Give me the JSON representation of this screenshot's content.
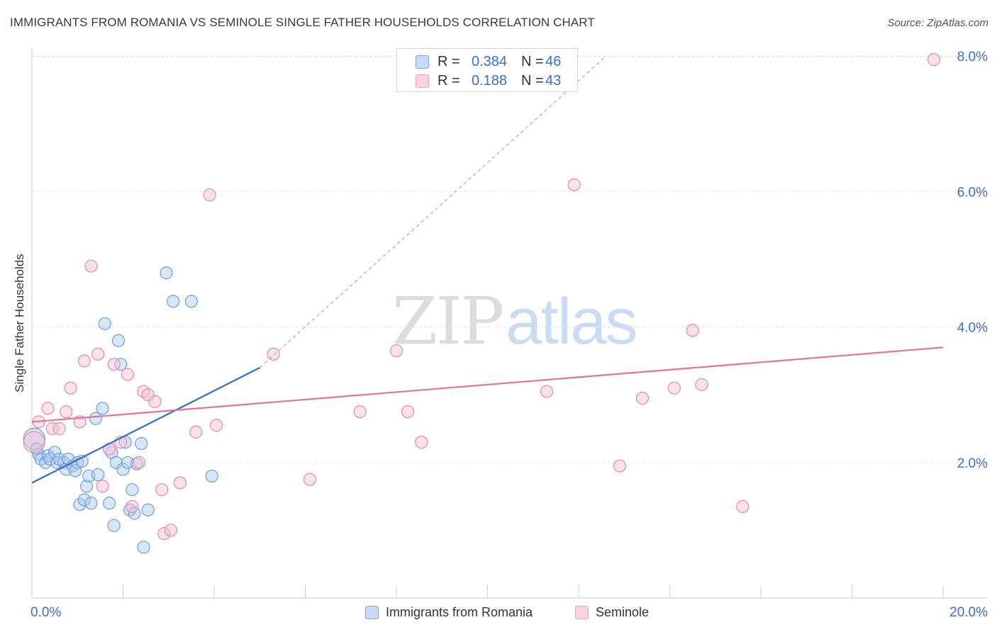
{
  "title": "IMMIGRANTS FROM ROMANIA VS SEMINOLE SINGLE FATHER HOUSEHOLDS CORRELATION CHART",
  "source": "Source: ZipAtlas.com",
  "watermark": {
    "zip": "ZIP",
    "atlas": "atlas"
  },
  "legend": {
    "r_label": "R =",
    "n_label": "N =",
    "rows": [
      {
        "r": "0.384",
        "n": "46"
      },
      {
        "r": "0.188",
        "n": "43"
      }
    ]
  },
  "colors": {
    "blue_fill": "#a9c8ef",
    "blue_stroke": "#6f9fdc",
    "blue_line": "#2f6fcf",
    "pink_fill": "#f6bfd0",
    "pink_stroke": "#e68aa8",
    "pink_line": "#e2739a",
    "grid": "#e2e2e2",
    "tick_label": "#3b6ecf"
  },
  "chart_data": {
    "type": "scatter",
    "title": "IMMIGRANTS FROM ROMANIA VS SEMINOLE SINGLE FATHER HOUSEHOLDS CORRELATION CHART",
    "xlabel": "",
    "ylabel": "Single Father Households",
    "xlim": [
      0,
      20
    ],
    "ylim": [
      0,
      8.4
    ],
    "x_tick_labels": [
      "0.0%",
      "20.0%"
    ],
    "y_ticks": [
      2,
      4,
      6,
      8
    ],
    "y_tick_labels": [
      "2.0%",
      "4.0%",
      "6.0%",
      "8.0%"
    ],
    "grid": true,
    "legend_placement": "top-center",
    "series": [
      {
        "name": "Immigrants from Romania",
        "color": "#a9c8ef",
        "r": 0.384,
        "n": 46,
        "trend": {
          "x": [
            0,
            5.0
          ],
          "y": [
            1.7,
            3.4
          ],
          "dashed_extension": {
            "x": [
              5.0,
              12.6
            ],
            "y": [
              3.4,
              8.0
            ]
          }
        },
        "points": [
          [
            0.05,
            2.35
          ],
          [
            0.1,
            2.2
          ],
          [
            0.15,
            2.12
          ],
          [
            0.2,
            2.05
          ],
          [
            0.3,
            2.0
          ],
          [
            0.35,
            2.1
          ],
          [
            0.4,
            2.05
          ],
          [
            0.5,
            2.15
          ],
          [
            0.55,
            2.0
          ],
          [
            0.6,
            2.05
          ],
          [
            0.7,
            2.0
          ],
          [
            0.75,
            1.9
          ],
          [
            0.8,
            2.05
          ],
          [
            0.9,
            1.95
          ],
          [
            0.95,
            1.88
          ],
          [
            1.0,
            2.0
          ],
          [
            1.05,
            1.38
          ],
          [
            1.1,
            2.02
          ],
          [
            1.15,
            1.45
          ],
          [
            1.2,
            1.65
          ],
          [
            1.25,
            1.8
          ],
          [
            1.3,
            1.4
          ],
          [
            1.4,
            2.65
          ],
          [
            1.45,
            1.82
          ],
          [
            1.55,
            2.8
          ],
          [
            1.6,
            4.05
          ],
          [
            1.7,
            1.4
          ],
          [
            1.75,
            2.15
          ],
          [
            1.8,
            1.07
          ],
          [
            1.85,
            2.0
          ],
          [
            1.9,
            3.8
          ],
          [
            1.95,
            3.45
          ],
          [
            2.0,
            1.9
          ],
          [
            2.05,
            2.3
          ],
          [
            2.1,
            2.0
          ],
          [
            2.15,
            1.3
          ],
          [
            2.2,
            1.6
          ],
          [
            2.25,
            1.25
          ],
          [
            2.3,
            1.98
          ],
          [
            2.4,
            2.28
          ],
          [
            2.45,
            0.75
          ],
          [
            2.55,
            1.3
          ],
          [
            2.95,
            4.8
          ],
          [
            3.1,
            4.38
          ],
          [
            3.5,
            4.38
          ],
          [
            3.95,
            1.8
          ]
        ]
      },
      {
        "name": "Seminole",
        "color": "#f6bfd0",
        "r": 0.188,
        "n": 43,
        "trend": {
          "x": [
            0,
            20
          ],
          "y": [
            2.6,
            3.7
          ]
        },
        "points": [
          [
            0.05,
            2.3
          ],
          [
            0.15,
            2.6
          ],
          [
            0.35,
            2.8
          ],
          [
            0.45,
            2.5
          ],
          [
            0.6,
            2.5
          ],
          [
            0.75,
            2.75
          ],
          [
            0.85,
            3.1
          ],
          [
            1.05,
            2.6
          ],
          [
            1.15,
            3.5
          ],
          [
            1.3,
            4.9
          ],
          [
            1.45,
            3.6
          ],
          [
            1.55,
            1.65
          ],
          [
            1.7,
            2.2
          ],
          [
            1.8,
            3.45
          ],
          [
            1.95,
            2.3
          ],
          [
            2.1,
            3.3
          ],
          [
            2.2,
            1.35
          ],
          [
            2.35,
            2.0
          ],
          [
            2.45,
            3.05
          ],
          [
            2.55,
            3.0
          ],
          [
            2.7,
            2.9
          ],
          [
            2.85,
            1.6
          ],
          [
            2.9,
            0.95
          ],
          [
            3.05,
            1.0
          ],
          [
            3.25,
            1.7
          ],
          [
            3.6,
            2.45
          ],
          [
            3.9,
            5.95
          ],
          [
            4.05,
            2.55
          ],
          [
            5.3,
            3.6
          ],
          [
            6.1,
            1.75
          ],
          [
            7.2,
            2.75
          ],
          [
            8.0,
            3.65
          ],
          [
            8.25,
            2.75
          ],
          [
            8.55,
            2.3
          ],
          [
            11.3,
            3.05
          ],
          [
            11.9,
            6.1
          ],
          [
            12.9,
            1.95
          ],
          [
            13.4,
            2.95
          ],
          [
            14.1,
            3.1
          ],
          [
            14.5,
            3.95
          ],
          [
            14.7,
            3.15
          ],
          [
            15.6,
            1.35
          ],
          [
            19.8,
            7.95
          ]
        ]
      }
    ]
  }
}
